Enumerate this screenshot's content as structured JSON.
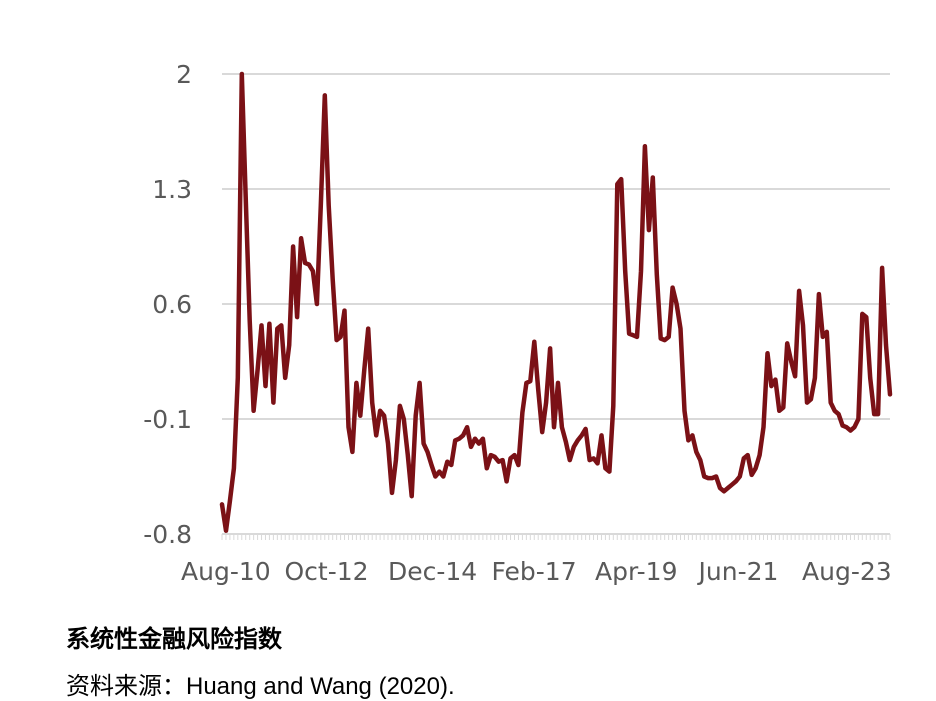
{
  "chart_data": {
    "type": "line",
    "title": "系统性金融风险指数",
    "source": "资料来源：Huang and Wang (2020).",
    "xlabel": "",
    "ylabel": "",
    "ylim": [
      -0.8,
      2
    ],
    "yticks": [
      "2",
      "1.3",
      "0.6",
      "-0.1",
      "-0.8"
    ],
    "ytick_values": [
      2,
      1.3,
      0.6,
      -0.1,
      -0.8
    ],
    "xticks": [
      "Aug-10",
      "Oct-12",
      "Dec-14",
      "Feb-17",
      "Apr-19",
      "Jun-21",
      "Aug-23"
    ],
    "x_start": "Aug-10",
    "x_end": "Apr-24",
    "grid": true,
    "legend": "none",
    "line_color": "#7b1116",
    "series": [
      {
        "values": [
          -0.62,
          -0.78,
          -0.6,
          -0.4,
          0.15,
          2.0,
          1.25,
          0.5,
          -0.05,
          0.2,
          0.47,
          0.1,
          0.48,
          0.0,
          0.45,
          0.47,
          0.15,
          0.35,
          0.95,
          0.52,
          1.0,
          0.85,
          0.84,
          0.8,
          0.6,
          1.2,
          1.87,
          1.2,
          0.75,
          0.38,
          0.4,
          0.56,
          -0.15,
          -0.3,
          0.12,
          -0.08,
          0.2,
          0.45,
          0.0,
          -0.2,
          -0.05,
          -0.08,
          -0.25,
          -0.55,
          -0.35,
          -0.02,
          -0.1,
          -0.32,
          -0.57,
          -0.08,
          0.12,
          -0.25,
          -0.3,
          -0.38,
          -0.45,
          -0.42,
          -0.45,
          -0.36,
          -0.38,
          -0.23,
          -0.22,
          -0.2,
          -0.15,
          -0.27,
          -0.22,
          -0.25,
          -0.22,
          -0.4,
          -0.32,
          -0.33,
          -0.36,
          -0.35,
          -0.48,
          -0.34,
          -0.32,
          -0.38,
          -0.06,
          0.12,
          0.13,
          0.37,
          0.08,
          -0.18,
          0.0,
          0.33,
          -0.15,
          0.12,
          -0.15,
          -0.24,
          -0.35,
          -0.27,
          -0.23,
          -0.2,
          -0.16,
          -0.35,
          -0.34,
          -0.37,
          -0.2,
          -0.4,
          -0.42,
          -0.02,
          1.33,
          1.36,
          0.8,
          0.42,
          0.41,
          0.4,
          0.8,
          1.56,
          1.05,
          1.37,
          0.78,
          0.39,
          0.38,
          0.4,
          0.7,
          0.6,
          0.45,
          -0.05,
          -0.23,
          -0.2,
          -0.3,
          -0.35,
          -0.45,
          -0.46,
          -0.46,
          -0.45,
          -0.52,
          -0.54,
          -0.52,
          -0.5,
          -0.48,
          -0.45,
          -0.34,
          -0.32,
          -0.44,
          -0.4,
          -0.32,
          -0.15,
          0.3,
          0.1,
          0.14,
          -0.05,
          -0.03,
          0.36,
          0.25,
          0.16,
          0.68,
          0.47,
          0.0,
          0.02,
          0.15,
          0.66,
          0.4,
          0.43,
          0.0,
          -0.05,
          -0.07,
          -0.14,
          -0.15,
          -0.17,
          -0.15,
          -0.1,
          0.54,
          0.52,
          0.15,
          -0.07,
          -0.07,
          0.82,
          0.35,
          0.05
        ]
      }
    ]
  }
}
